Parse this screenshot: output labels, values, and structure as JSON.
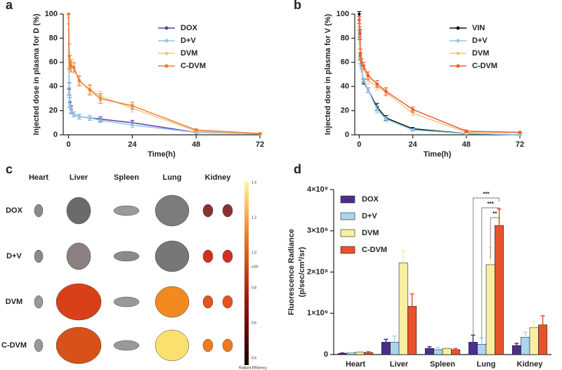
{
  "chart_data": [
    {
      "type": "line",
      "panel": "a",
      "x_label": "Time(h)",
      "y_label": "Injected dose in plasma for D (%)",
      "x": [
        0,
        0.25,
        0.5,
        1,
        2,
        4,
        8,
        12,
        24,
        48,
        72
      ],
      "xlim": [
        -2,
        72
      ],
      "xticks": [
        0,
        24,
        48,
        72
      ],
      "ylim": [
        0,
        100
      ],
      "yticks": [
        0,
        20,
        40,
        60,
        80,
        100
      ],
      "series": [
        {
          "name": "DOX",
          "color": "#5b3fa8",
          "values": [
            100,
            38,
            27,
            21,
            17,
            15,
            14,
            13,
            10,
            2,
            1
          ],
          "errors": [
            0,
            5,
            4,
            3,
            2,
            2,
            2,
            2,
            2,
            1,
            0.5
          ]
        },
        {
          "name": "D+V",
          "color": "#8ec6e8",
          "values": [
            100,
            35,
            25,
            20,
            17,
            15,
            14,
            12,
            8,
            2,
            1
          ],
          "errors": [
            0,
            4,
            3,
            3,
            2,
            2,
            2,
            2,
            2,
            1,
            0.5
          ]
        },
        {
          "name": "DVM",
          "color": "#f5c48a",
          "values": [
            92,
            62,
            58,
            56,
            55,
            44,
            38,
            32,
            22,
            3,
            1
          ],
          "errors": [
            5,
            6,
            5,
            4,
            4,
            4,
            4,
            4,
            3,
            1,
            0.5
          ]
        },
        {
          "name": "C-DVM",
          "color": "#ef7d2e",
          "values": [
            100,
            65,
            60,
            57,
            56,
            45,
            37,
            30,
            24,
            4,
            1
          ],
          "errors": [
            0,
            10,
            6,
            5,
            4,
            4,
            4,
            4,
            3,
            1,
            0.5
          ]
        }
      ]
    },
    {
      "type": "line",
      "panel": "b",
      "x_label": "Time(h)",
      "y_label": "Injected dose in plasma for V (%)",
      "x": [
        0,
        0.25,
        0.5,
        1,
        2,
        4,
        8,
        12,
        24,
        48,
        72
      ],
      "xlim": [
        -2,
        72
      ],
      "xticks": [
        0,
        24,
        48,
        72
      ],
      "ylim": [
        0,
        100
      ],
      "yticks": [
        0,
        20,
        40,
        60,
        80,
        100
      ],
      "series": [
        {
          "name": "VIN",
          "color": "#111111",
          "values": [
            100,
            83,
            65,
            55,
            44,
            37,
            23,
            14,
            5,
            1,
            0
          ],
          "errors": [
            2,
            4,
            3,
            3,
            2,
            2,
            3,
            2,
            1,
            0.5,
            0.5
          ]
        },
        {
          "name": "D+V",
          "color": "#8ec6e8",
          "values": [
            95,
            80,
            62,
            55,
            45,
            37,
            21,
            13,
            4,
            1,
            0
          ],
          "errors": [
            3,
            4,
            3,
            3,
            2,
            2,
            3,
            2,
            1,
            0.5,
            0.5
          ]
        },
        {
          "name": "DVM",
          "color": "#f5c48a",
          "values": [
            93,
            82,
            68,
            60,
            55,
            45,
            40,
            35,
            18,
            2,
            2
          ],
          "errors": [
            3,
            4,
            4,
            3,
            3,
            3,
            3,
            3,
            2,
            1,
            0.5
          ]
        },
        {
          "name": "C-DVM",
          "color": "#ef5a2e",
          "values": [
            95,
            85,
            67,
            60,
            57,
            49,
            42,
            36,
            21,
            3,
            2
          ],
          "errors": [
            3,
            4,
            4,
            3,
            3,
            3,
            3,
            3,
            2,
            1,
            0.5
          ]
        }
      ]
    },
    {
      "type": "image-grid",
      "panel": "c",
      "columns": [
        "Heart",
        "Liver",
        "Spleen",
        "Lung",
        "Kidney"
      ],
      "rows": [
        "DOX",
        "D+V",
        "DVM",
        "C-DVM"
      ],
      "colorbar_ticks": [
        "1.4",
        "1.2",
        "1.0",
        "0.8",
        "0.6",
        "0.4"
      ],
      "colorbar_unit": "x10⁸",
      "colorbar_label": "Radiant Efficiency"
    },
    {
      "type": "bar",
      "panel": "d",
      "y_label": [
        "Fluorescence Radiance",
        "(p/sec/cm²/sr)"
      ],
      "categories": [
        "Heart",
        "Liver",
        "Spleen",
        "Lung",
        "Kidney"
      ],
      "ylim": [
        0,
        4000000000
      ],
      "yticks": [
        0,
        {
          "value": 1000000000,
          "label": "1×10⁹"
        },
        {
          "value": 2000000000,
          "label": "2×10⁹"
        },
        {
          "value": 3000000000,
          "label": "3×10⁹"
        },
        {
          "value": 4000000000,
          "label": "4×10⁹"
        }
      ],
      "series": [
        {
          "name": "DOX",
          "color": "#4b2e8c",
          "values": [
            30000000,
            300000000,
            150000000,
            300000000,
            220000000
          ],
          "errors": [
            10000000,
            70000000,
            40000000,
            170000000,
            50000000
          ]
        },
        {
          "name": "D+V",
          "color": "#a9d6ee",
          "values": [
            40000000,
            300000000,
            120000000,
            250000000,
            420000000
          ],
          "errors": [
            10000000,
            150000000,
            50000000,
            150000000,
            120000000
          ]
        },
        {
          "name": "DVM",
          "color": "#f8f0a0",
          "values": [
            60000000,
            2220000000,
            150000000,
            2180000000,
            650000000
          ],
          "errors": [
            20000000,
            300000000,
            20000000,
            420000000,
            150000000
          ]
        },
        {
          "name": "C-DVM",
          "color": "#e8522a",
          "values": [
            50000000,
            1170000000,
            120000000,
            3130000000,
            720000000
          ],
          "errors": [
            20000000,
            300000000,
            30000000,
            400000000,
            220000000
          ]
        }
      ],
      "annotations": [
        "***",
        "***",
        "**"
      ]
    }
  ]
}
